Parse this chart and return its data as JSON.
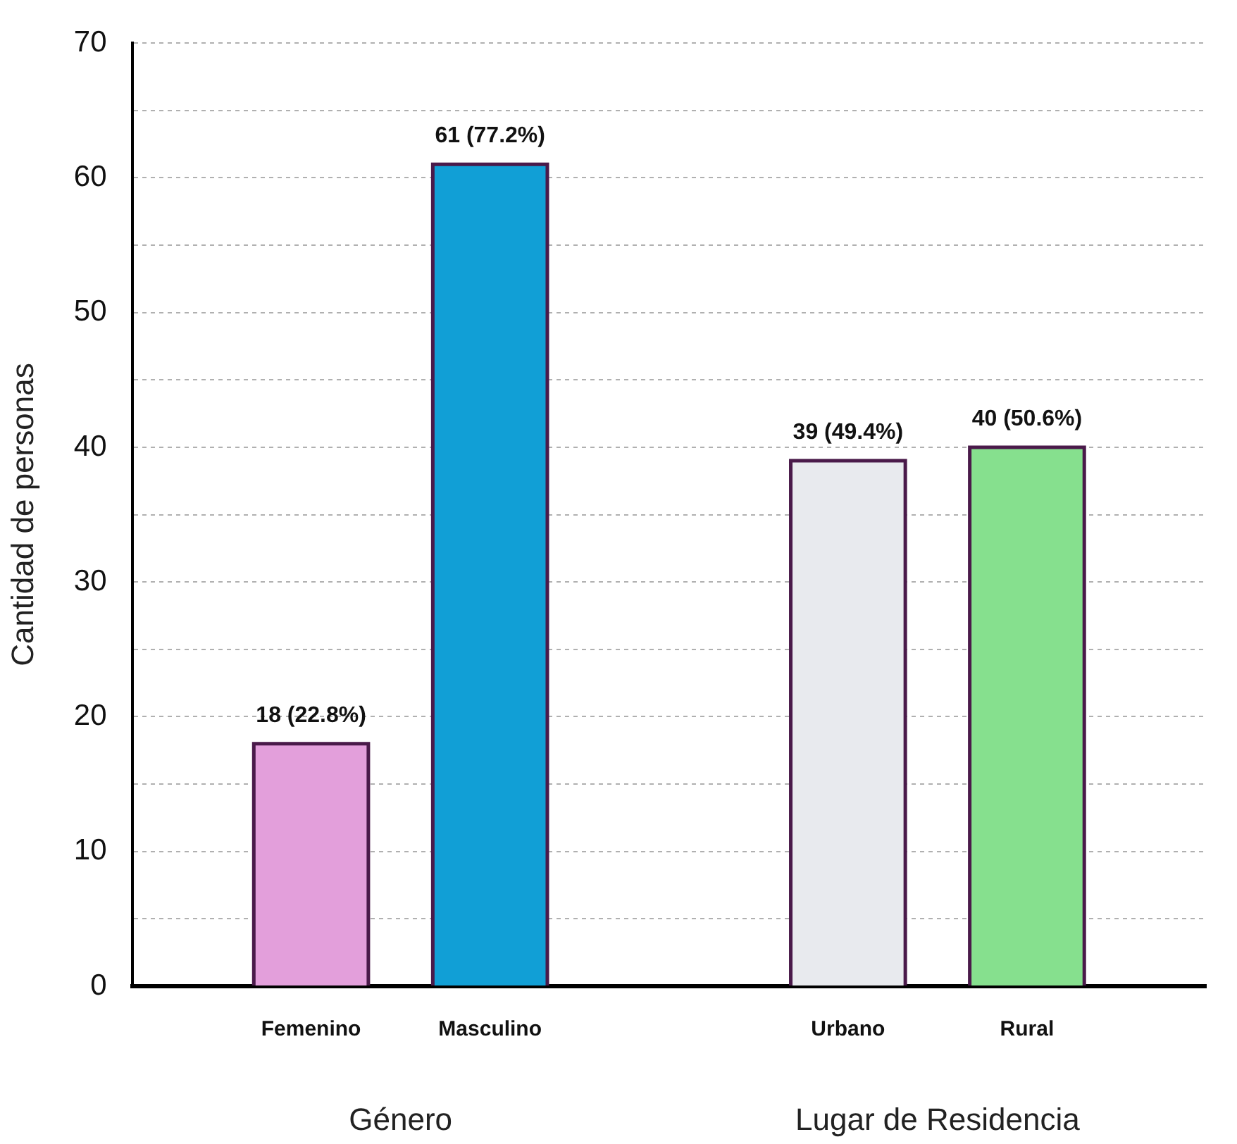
{
  "chart_data": {
    "type": "bar",
    "ylabel": "Cantidad de personas",
    "categories": [
      null,
      "Femenino",
      "Masculino",
      null,
      "Urbano",
      "Rural",
      null
    ],
    "values": [
      null,
      18,
      61,
      null,
      39,
      40,
      null
    ],
    "colors": [
      "#e39fdb",
      "#e39fdb",
      "#119fd6",
      "#119fd6",
      "#e8eaee",
      "#86e08e",
      "#86e08e"
    ],
    "value_labels": [
      null,
      "18 (22.8%)",
      "61 (77.2%)",
      null,
      "39 (49.4%)",
      "40 (50.6%)",
      null
    ],
    "annotations": [
      "Género",
      "Lugar de Residencia"
    ],
    "ylim": [
      0,
      70
    ],
    "yticks": [
      0,
      {
        "value": 5,
        "label": null
      },
      10,
      {
        "value": 15,
        "label": null
      },
      20,
      {
        "value": 25,
        "label": null
      },
      30,
      {
        "value": 35,
        "label": null
      },
      40,
      {
        "value": 45,
        "label": null
      },
      50,
      {
        "value": 55,
        "label": null
      },
      60,
      {
        "value": 65,
        "label": null
      },
      70
    ],
    "grid": "y",
    "legend": false
  }
}
